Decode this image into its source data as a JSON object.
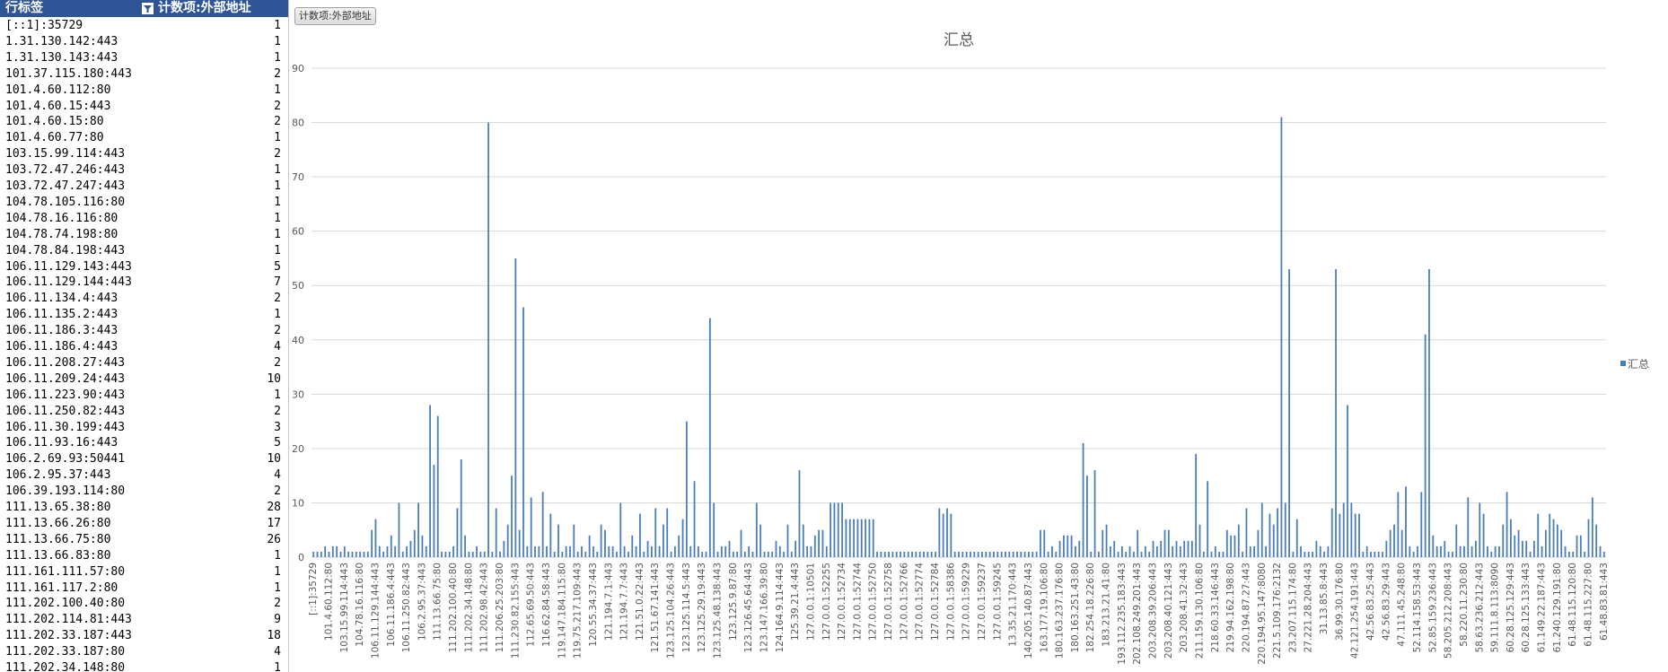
{
  "pivot_table": {
    "header": [
      "行标签",
      "计数项:外部地址"
    ],
    "rows": [
      [
        "[::1]:35729",
        1
      ],
      [
        "1.31.130.142:443",
        1
      ],
      [
        "1.31.130.143:443",
        1
      ],
      [
        "101.37.115.180:443",
        2
      ],
      [
        "101.4.60.112:80",
        1
      ],
      [
        "101.4.60.15:443",
        2
      ],
      [
        "101.4.60.15:80",
        2
      ],
      [
        "101.4.60.77:80",
        1
      ],
      [
        "103.15.99.114:443",
        2
      ],
      [
        "103.72.47.246:443",
        1
      ],
      [
        "103.72.47.247:443",
        1
      ],
      [
        "104.78.105.116:80",
        1
      ],
      [
        "104.78.16.116:80",
        1
      ],
      [
        "104.78.74.198:80",
        1
      ],
      [
        "104.78.84.198:443",
        1
      ],
      [
        "106.11.129.143:443",
        5
      ],
      [
        "106.11.129.144:443",
        7
      ],
      [
        "106.11.134.4:443",
        2
      ],
      [
        "106.11.135.2:443",
        1
      ],
      [
        "106.11.186.3:443",
        2
      ],
      [
        "106.11.186.4:443",
        4
      ],
      [
        "106.11.208.27:443",
        2
      ],
      [
        "106.11.209.24:443",
        10
      ],
      [
        "106.11.223.90:443",
        1
      ],
      [
        "106.11.250.82:443",
        2
      ],
      [
        "106.11.30.199:443",
        3
      ],
      [
        "106.11.93.16:443",
        5
      ],
      [
        "106.2.69.93:50441",
        10
      ],
      [
        "106.2.95.37:443",
        4
      ],
      [
        "106.39.193.114:80",
        2
      ],
      [
        "111.13.65.38:80",
        28
      ],
      [
        "111.13.66.26:80",
        17
      ],
      [
        "111.13.66.75:80",
        26
      ],
      [
        "111.13.66.83:80",
        1
      ],
      [
        "111.161.111.57:80",
        1
      ],
      [
        "111.161.117.2:80",
        1
      ],
      [
        "111.202.100.40:80",
        2
      ],
      [
        "111.202.114.81:443",
        9
      ],
      [
        "111.202.33.187:443",
        18
      ],
      [
        "111.202.33.187:80",
        4
      ],
      [
        "111.202.34.148:80",
        1
      ]
    ]
  },
  "chart_button": "计数项:外部地址",
  "chart_data": {
    "type": "bar",
    "title": "汇总",
    "categories": [
      "[::1]:35729",
      null,
      null,
      null,
      "101.4.60.112:80",
      null,
      null,
      null,
      "103.15.99.114:443",
      null,
      null,
      null,
      "104.78.16.116:80",
      null,
      null,
      null,
      "106.11.129.144:443",
      null,
      null,
      null,
      "106.11.186.4:443",
      null,
      null,
      null,
      "106.11.250.82:443",
      null,
      null,
      null,
      "106.2.95.37:443",
      null,
      null,
      null,
      "111.13.66.75:80",
      null,
      null,
      null,
      "111.202.100.40:80",
      null,
      null,
      null,
      "111.202.34.148:80",
      null,
      null,
      null,
      "111.202.98.42:443",
      null,
      null,
      null,
      "111.206.25.203:80",
      null,
      null,
      null,
      "111.230.82.155:443",
      null,
      null,
      null,
      "112.65.69.50:443",
      null,
      null,
      null,
      "116.62.84.58:443",
      null,
      null,
      null,
      "119.147.184.115:80",
      null,
      null,
      null,
      "119.75.217.109:443",
      null,
      null,
      null,
      "120.55.34.37:443",
      null,
      null,
      null,
      "121.194.7.1:443",
      null,
      null,
      null,
      "121.194.7.7:443",
      null,
      null,
      null,
      "121.51.0.22:443",
      null,
      null,
      null,
      "121.51.67.141:443",
      null,
      null,
      null,
      "123.125.104.26:443",
      null,
      null,
      null,
      "123.125.114.5:443",
      null,
      null,
      null,
      "123.125.29.19:443",
      null,
      null,
      null,
      "123.125.48.138:443",
      null,
      null,
      null,
      "123.125.9.87:80",
      null,
      null,
      null,
      "123.126.45.64:443",
      null,
      null,
      null,
      "123.147.166.39:80",
      null,
      null,
      null,
      "124.164.9.114:443",
      null,
      null,
      null,
      "125.39.21.4:443",
      null,
      null,
      null,
      "127.0.0.1:10501",
      null,
      null,
      null,
      "127.0.0.1:52255",
      null,
      null,
      null,
      "127.0.0.1:52734",
      null,
      null,
      null,
      "127.0.0.1:52744",
      null,
      null,
      null,
      "127.0.0.1:52750",
      null,
      null,
      null,
      "127.0.0.1:52758",
      null,
      null,
      null,
      "127.0.0.1:52766",
      null,
      null,
      null,
      "127.0.0.1:52774",
      null,
      null,
      null,
      "127.0.0.1:52784",
      null,
      null,
      null,
      "127.0.0.1:58386",
      null,
      null,
      null,
      "127.0.0.1:59229",
      null,
      null,
      null,
      "127.0.0.1:59237",
      null,
      null,
      null,
      "127.0.0.1:59245",
      null,
      null,
      null,
      "13.35.21.170:443",
      null,
      null,
      null,
      "140.205.140.87:443",
      null,
      null,
      null,
      "163.177.19.106:80",
      null,
      null,
      null,
      "180.163.237.176:80",
      null,
      null,
      null,
      "180.163.251.43:80",
      null,
      null,
      null,
      "182.254.18.226:80",
      null,
      null,
      null,
      "183.213.21.41:80",
      null,
      null,
      null,
      "193.112.235.183:443",
      null,
      null,
      null,
      "202.108.249.201:443",
      null,
      null,
      null,
      "203.208.39.206:443",
      null,
      null,
      null,
      "203.208.40.121:443",
      null,
      null,
      null,
      "203.208.41.32:443",
      null,
      null,
      null,
      "211.159.130.106:80",
      null,
      null,
      null,
      "218.60.33.146:443",
      null,
      null,
      null,
      "219.94.162.198:80",
      null,
      null,
      null,
      "220.194.87.27:443",
      null,
      null,
      null,
      "220.194.95.147:8080",
      null,
      null,
      null,
      "221.5.109.176:2132",
      null,
      null,
      null,
      "23.207.115.174:80",
      null,
      null,
      null,
      "27.221.28.204:443",
      null,
      null,
      null,
      "31.13.85.8:443",
      null,
      null,
      null,
      "36.99.30.176:80",
      null,
      null,
      null,
      "42.121.254.191:443",
      null,
      null,
      null,
      "42.56.83.25:443",
      null,
      null,
      null,
      "42.56.83.29:443",
      null,
      null,
      null,
      "47.111.45.248:80",
      null,
      null,
      null,
      "52.114.158.53:443",
      null,
      null,
      null,
      "52.85.159.236:443",
      null,
      null,
      null,
      "58.205.212.208:443",
      null,
      null,
      null,
      "58.220.11.230:80",
      null,
      null,
      null,
      "58.63.236.212:443",
      null,
      null,
      null,
      "59.111.8.113:8090",
      null,
      null,
      null,
      "60.28.125.129:443",
      null,
      null,
      null,
      "60.28.125.133:443",
      null,
      null,
      null,
      "61.149.22.187:443",
      null,
      null,
      null,
      "61.240.129.191:80",
      null,
      null,
      null,
      "61.48.115.120:80",
      null,
      null,
      null,
      "61.48.115.227:80",
      null,
      null,
      null,
      "61.48.83.81:443"
    ],
    "series": [
      {
        "name": "汇总",
        "color": "#4a7ebb",
        "values": [
          1,
          1,
          1,
          2,
          1,
          2,
          2,
          1,
          2,
          1,
          1,
          1,
          1,
          1,
          1,
          5,
          7,
          2,
          1,
          2,
          4,
          2,
          10,
          1,
          2,
          3,
          5,
          10,
          4,
          2,
          28,
          17,
          26,
          1,
          1,
          1,
          2,
          9,
          18,
          4,
          1,
          1,
          2,
          1,
          1,
          80,
          1,
          9,
          1,
          3,
          6,
          15,
          55,
          5,
          46,
          2,
          11,
          2,
          2,
          12,
          2,
          8,
          1,
          6,
          1,
          2,
          2,
          6,
          1,
          2,
          1,
          4,
          2,
          1,
          6,
          5,
          2,
          2,
          1,
          10,
          2,
          1,
          4,
          2,
          8,
          1,
          3,
          2,
          9,
          2,
          6,
          9,
          1,
          2,
          4,
          7,
          25,
          2,
          14,
          2,
          1,
          1,
          44,
          10,
          1,
          2,
          2,
          3,
          1,
          1,
          5,
          1,
          2,
          1,
          10,
          6,
          1,
          1,
          1,
          3,
          2,
          1,
          6,
          1,
          3,
          16,
          6,
          2,
          2,
          4,
          5,
          5,
          2,
          10,
          10,
          10,
          10,
          7,
          7,
          7,
          7,
          7,
          7,
          7,
          7,
          1,
          1,
          1,
          1,
          1,
          1,
          1,
          1,
          1,
          1,
          1,
          1,
          1,
          1,
          1,
          1,
          9,
          8,
          9,
          8,
          1,
          1,
          1,
          1,
          1,
          1,
          1,
          1,
          1,
          1,
          1,
          1,
          1,
          1,
          1,
          1,
          1,
          1,
          1,
          1,
          1,
          1,
          5,
          5,
          1,
          2,
          1,
          3,
          4,
          4,
          4,
          2,
          3,
          21,
          15,
          1,
          16,
          1,
          5,
          6,
          2,
          3,
          1,
          2,
          1,
          2,
          1,
          5,
          1,
          2,
          1,
          3,
          2,
          3,
          5,
          5,
          2,
          3,
          2,
          3,
          3,
          3,
          19,
          6,
          1,
          14,
          1,
          2,
          1,
          1,
          5,
          4,
          4,
          6,
          1,
          9,
          2,
          2,
          5,
          10,
          2,
          8,
          6,
          9,
          81,
          10,
          53,
          1,
          7,
          2,
          1,
          1,
          1,
          3,
          2,
          1,
          2,
          9,
          53,
          8,
          10,
          28,
          10,
          8,
          8,
          1,
          2,
          1,
          1,
          1,
          1,
          3,
          5,
          6,
          12,
          5,
          13,
          2,
          1,
          2,
          12,
          41,
          53,
          4,
          2,
          2,
          3,
          1,
          1,
          6,
          2,
          2,
          11,
          2,
          3,
          10,
          8,
          2,
          1,
          2,
          2,
          6,
          12,
          7,
          4,
          5,
          3,
          3,
          1,
          3,
          8,
          2,
          5,
          8,
          7,
          6,
          5,
          2,
          1,
          1,
          4,
          4,
          1,
          7,
          11,
          6,
          2,
          1
        ]
      }
    ],
    "ylim": [
      0,
      90
    ],
    "yticks": [
      0,
      10,
      20,
      30,
      40,
      50,
      60,
      70,
      80,
      90
    ],
    "grid": true,
    "legend": "right"
  }
}
